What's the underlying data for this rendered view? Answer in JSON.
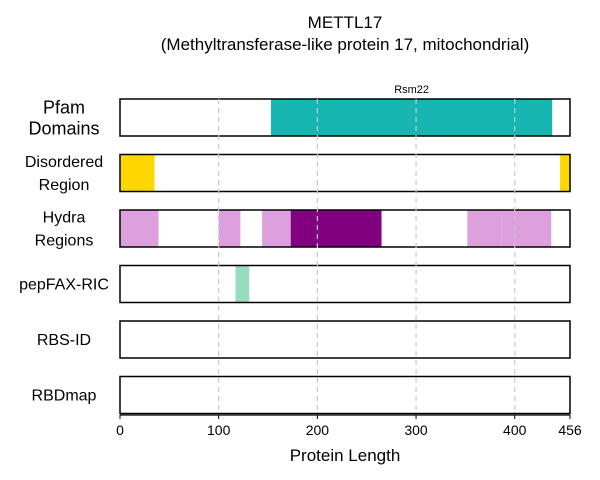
{
  "chart_data": {
    "type": "bar",
    "title": "METTL17",
    "subtitle": "(Methyltransferase-like protein 17, mitochondrial)",
    "xlabel": "Protein Length",
    "xlim": [
      0,
      456
    ],
    "xticks": [
      0,
      100,
      200,
      300,
      400,
      456
    ],
    "gridlines": [
      100,
      200,
      300,
      400
    ],
    "grid": "vertical-dashed",
    "rows": [
      {
        "label": [
          "Pfam",
          "Domains"
        ],
        "segments": [
          {
            "start": 153,
            "end": 438,
            "color": "#17b6b1",
            "label": "Rsm22"
          }
        ]
      },
      {
        "label": [
          "Disordered",
          "Region"
        ],
        "segments": [
          {
            "start": 0,
            "end": 35,
            "color": "#ffd700"
          },
          {
            "start": 446,
            "end": 456,
            "color": "#ffd700"
          }
        ]
      },
      {
        "label": [
          "Hydra",
          "Regions"
        ],
        "segments": [
          {
            "start": 0,
            "end": 39,
            "color": "#dda0dd"
          },
          {
            "start": 100,
            "end": 122,
            "color": "#dda0dd"
          },
          {
            "start": 144,
            "end": 173,
            "color": "#dda0dd"
          },
          {
            "start": 173,
            "end": 265,
            "color": "#800080"
          },
          {
            "start": 352,
            "end": 387,
            "color": "#dda0dd"
          },
          {
            "start": 387,
            "end": 437,
            "color": "#dda0dd"
          }
        ]
      },
      {
        "label": [
          "pepFAX-RIC"
        ],
        "segments": [
          {
            "start": 117,
            "end": 131,
            "color": "#98dbbe"
          }
        ]
      },
      {
        "label": [
          "RBS-ID"
        ],
        "segments": []
      },
      {
        "label": [
          "RBDmap"
        ],
        "segments": []
      }
    ]
  }
}
